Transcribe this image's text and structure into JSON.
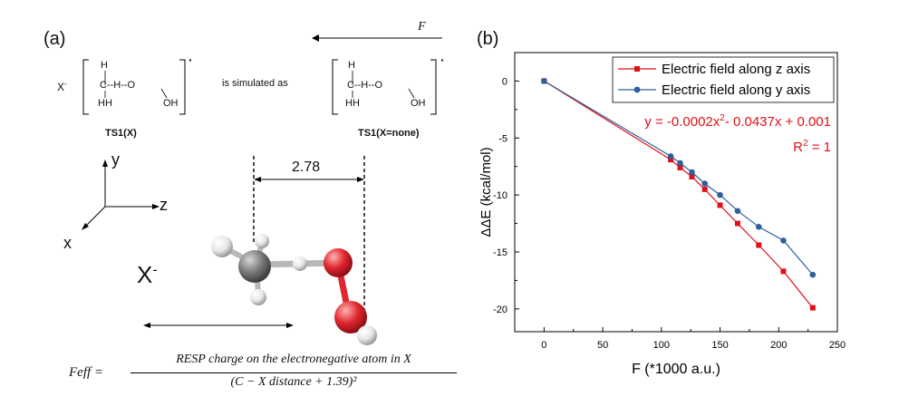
{
  "panel_a": {
    "label": "(a)",
    "force_label": "F",
    "x_anion": "X",
    "x_anion_sup": "-",
    "middle_text": "is simulated as",
    "left_caption": "TS1(X)",
    "right_caption": "TS1(X=none)",
    "dot": "·",
    "struct": {
      "H": "H",
      "HH": "HH",
      "C": "C",
      "middle": "--H--O",
      "OH": "OH"
    },
    "axes": {
      "y": "y",
      "z": "z",
      "x": "x"
    },
    "distance": "2.78",
    "x_ion_label": "X",
    "x_ion_sup": "-",
    "formula": {
      "lhs": "Feff =",
      "numerator": "RESP charge on the electronegative atom in X",
      "denominator": "(C − X distance + 1.39)²"
    },
    "colors": {
      "carbon": "#7a7a7a",
      "oxygen": "#e0262f",
      "hydrogen": "#eeeeee"
    }
  },
  "panel_b": {
    "label": "(b)"
  },
  "chart_data": {
    "type": "line",
    "xlabel": "F (*1000 a.u.)",
    "ylabel": "ΔΔE (kcal/mol)",
    "xlim": [
      -25,
      250
    ],
    "ylim": [
      -22,
      2.5
    ],
    "xticks": [
      0,
      50,
      100,
      150,
      200,
      250
    ],
    "yticks": [
      0,
      -5,
      -10,
      -15,
      -20
    ],
    "grid": false,
    "legend_position": "top-right",
    "series": [
      {
        "name": "Electric field along z axis",
        "color": "#e0101a",
        "marker": "square",
        "x": [
          0,
          108,
          116,
          126,
          137,
          150,
          165,
          183,
          204,
          229
        ],
        "y": [
          0,
          -6.9,
          -7.6,
          -8.4,
          -9.5,
          -10.9,
          -12.5,
          -14.4,
          -16.7,
          -19.9
        ]
      },
      {
        "name": "Electric field along y axis",
        "color": "#2f5f9a",
        "marker": "circle",
        "x": [
          0,
          108,
          116,
          126,
          137,
          150,
          165,
          183,
          204,
          229
        ],
        "y": [
          0,
          -6.6,
          -7.2,
          -8.0,
          -9.0,
          -10.0,
          -11.4,
          -12.8,
          -14.0,
          -17.0
        ]
      }
    ],
    "annotations": {
      "fit": "y = -0.0002x",
      "fit_sup": "2",
      "fit_rest": "- 0.0437x + 0.001",
      "r2": "R",
      "r2_sup": "2",
      "r2_rest": " = 1",
      "color": "#e0101a"
    }
  }
}
